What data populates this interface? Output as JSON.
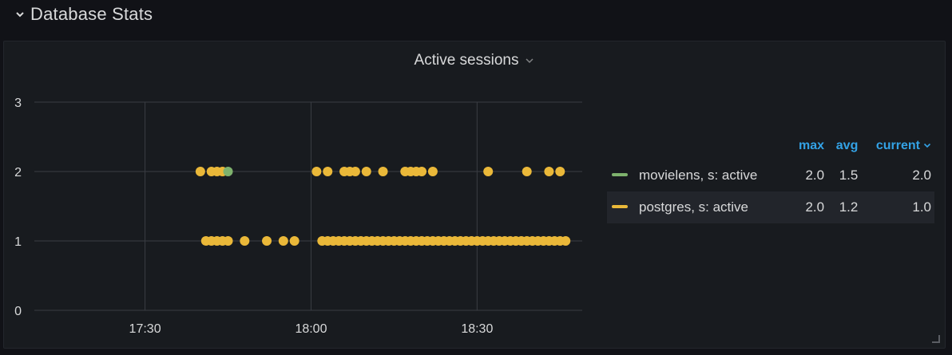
{
  "row": {
    "title": "Database Stats"
  },
  "panel": {
    "title": "Active sessions"
  },
  "legend": {
    "headers": {
      "max": "max",
      "avg": "avg",
      "current": "current"
    },
    "series": [
      {
        "name": "movielens, s: active",
        "max": "2.0",
        "avg": "1.5",
        "current": "2.0",
        "color": "#7eb26d"
      },
      {
        "name": "postgres, s: active",
        "max": "2.0",
        "avg": "1.2",
        "current": "1.0",
        "color": "#eab839"
      }
    ]
  },
  "chart_data": {
    "type": "scatter",
    "title": "Active sessions",
    "xlabel": "",
    "ylabel": "",
    "x_ticks": [
      "17:30",
      "18:00",
      "18:30"
    ],
    "y_ticks": [
      0,
      1,
      2,
      3
    ],
    "xlim": [
      "17:10",
      "18:49"
    ],
    "ylim": [
      0,
      3
    ],
    "grid": true,
    "legend_position": "right",
    "series": [
      {
        "name": "movielens, s: active",
        "color": "#7eb26d",
        "points": [
          {
            "x": "17:45",
            "y": 2
          }
        ]
      },
      {
        "name": "postgres, s: active",
        "color": "#eab839",
        "points": [
          {
            "x": "17:40",
            "y": 2
          },
          {
            "x": "17:42",
            "y": 2
          },
          {
            "x": "17:43",
            "y": 2
          },
          {
            "x": "17:44",
            "y": 2
          },
          {
            "x": "18:01",
            "y": 2
          },
          {
            "x": "18:03",
            "y": 2
          },
          {
            "x": "18:06",
            "y": 2
          },
          {
            "x": "18:07",
            "y": 2
          },
          {
            "x": "18:08",
            "y": 2
          },
          {
            "x": "18:10",
            "y": 2
          },
          {
            "x": "18:13",
            "y": 2
          },
          {
            "x": "18:17",
            "y": 2
          },
          {
            "x": "18:18",
            "y": 2
          },
          {
            "x": "18:19",
            "y": 2
          },
          {
            "x": "18:20",
            "y": 2
          },
          {
            "x": "18:22",
            "y": 2
          },
          {
            "x": "18:32",
            "y": 2
          },
          {
            "x": "18:39",
            "y": 2
          },
          {
            "x": "18:43",
            "y": 2
          },
          {
            "x": "18:45",
            "y": 2
          },
          {
            "x": "17:41",
            "y": 1
          },
          {
            "x": "17:42",
            "y": 1
          },
          {
            "x": "17:43",
            "y": 1
          },
          {
            "x": "17:44",
            "y": 1
          },
          {
            "x": "17:45",
            "y": 1
          },
          {
            "x": "17:48",
            "y": 1
          },
          {
            "x": "17:52",
            "y": 1
          },
          {
            "x": "17:55",
            "y": 1
          },
          {
            "x": "17:57",
            "y": 1
          },
          {
            "x": "18:02",
            "y": 1
          },
          {
            "x": "18:03",
            "y": 1
          },
          {
            "x": "18:04",
            "y": 1
          },
          {
            "x": "18:05",
            "y": 1
          },
          {
            "x": "18:06",
            "y": 1
          },
          {
            "x": "18:07",
            "y": 1
          },
          {
            "x": "18:08",
            "y": 1
          },
          {
            "x": "18:09",
            "y": 1
          },
          {
            "x": "18:10",
            "y": 1
          },
          {
            "x": "18:11",
            "y": 1
          },
          {
            "x": "18:12",
            "y": 1
          },
          {
            "x": "18:13",
            "y": 1
          },
          {
            "x": "18:14",
            "y": 1
          },
          {
            "x": "18:15",
            "y": 1
          },
          {
            "x": "18:16",
            "y": 1
          },
          {
            "x": "18:17",
            "y": 1
          },
          {
            "x": "18:18",
            "y": 1
          },
          {
            "x": "18:19",
            "y": 1
          },
          {
            "x": "18:20",
            "y": 1
          },
          {
            "x": "18:21",
            "y": 1
          },
          {
            "x": "18:22",
            "y": 1
          },
          {
            "x": "18:23",
            "y": 1
          },
          {
            "x": "18:24",
            "y": 1
          },
          {
            "x": "18:25",
            "y": 1
          },
          {
            "x": "18:26",
            "y": 1
          },
          {
            "x": "18:27",
            "y": 1
          },
          {
            "x": "18:28",
            "y": 1
          },
          {
            "x": "18:29",
            "y": 1
          },
          {
            "x": "18:30",
            "y": 1
          },
          {
            "x": "18:31",
            "y": 1
          },
          {
            "x": "18:32",
            "y": 1
          },
          {
            "x": "18:33",
            "y": 1
          },
          {
            "x": "18:34",
            "y": 1
          },
          {
            "x": "18:35",
            "y": 1
          },
          {
            "x": "18:36",
            "y": 1
          },
          {
            "x": "18:37",
            "y": 1
          },
          {
            "x": "18:38",
            "y": 1
          },
          {
            "x": "18:39",
            "y": 1
          },
          {
            "x": "18:40",
            "y": 1
          },
          {
            "x": "18:41",
            "y": 1
          },
          {
            "x": "18:42",
            "y": 1
          },
          {
            "x": "18:43",
            "y": 1
          },
          {
            "x": "18:44",
            "y": 1
          },
          {
            "x": "18:45",
            "y": 1
          },
          {
            "x": "18:46",
            "y": 1
          }
        ]
      }
    ]
  }
}
